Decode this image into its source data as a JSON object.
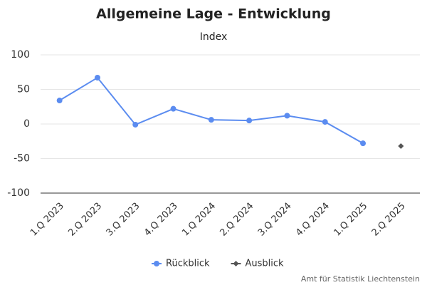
{
  "chart_data": {
    "type": "line",
    "title": "Allgemeine Lage - Entwicklung",
    "subtitle": "Index",
    "categories": [
      "1.Q 2023",
      "2.Q 2023",
      "3.Q 2023",
      "4.Q 2023",
      "1.Q 2024",
      "2.Q 2024",
      "3.Q 2024",
      "4.Q 2024",
      "1.Q 2025",
      "2.Q 2025"
    ],
    "series": [
      {
        "name": "Rückblick",
        "color": "#5b8cf0",
        "marker": "circle",
        "values": [
          34,
          67,
          -1,
          22,
          6,
          5,
          12,
          3,
          -28,
          null
        ]
      },
      {
        "name": "Ausblick",
        "color": "#555555",
        "marker": "diamond",
        "values": [
          null,
          null,
          null,
          null,
          null,
          null,
          null,
          null,
          null,
          -32
        ]
      }
    ],
    "ylim": [
      -100,
      100
    ],
    "yticks": [
      -100,
      -50,
      0,
      50,
      100
    ],
    "grid": true,
    "credit": "Amt für Statistik Liechtenstein"
  }
}
